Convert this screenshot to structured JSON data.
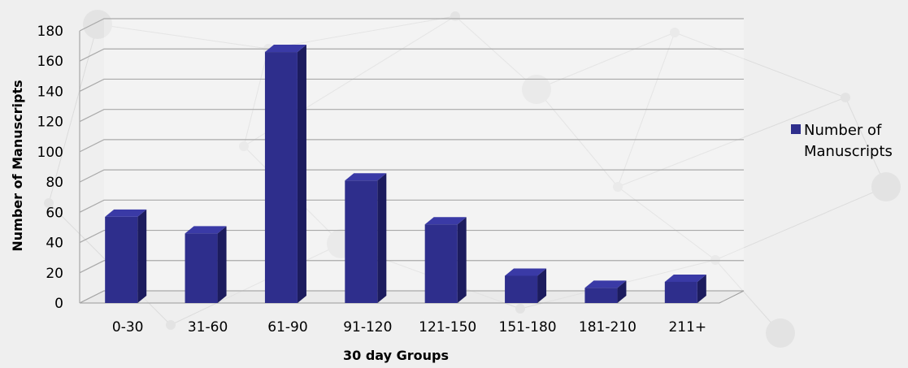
{
  "chart_data": {
    "type": "bar",
    "style": "3d-column",
    "categories": [
      "0-30",
      "31-60",
      "61-90",
      "91-120",
      "121-150",
      "151-180",
      "181-210",
      "211+"
    ],
    "series": [
      {
        "name": "Number of Manuscripts",
        "color": "#2e2e8c",
        "values": [
          57,
          46,
          166,
          81,
          52,
          18,
          10,
          14
        ]
      }
    ],
    "xlabel": "30 day Groups",
    "ylabel": "Number of Manuscripts",
    "ylim": [
      0,
      180
    ],
    "yticks": [
      0,
      20,
      40,
      60,
      80,
      100,
      120,
      140,
      160,
      180
    ],
    "grid": true,
    "legend": {
      "position": "right",
      "label_lines": [
        "Number of",
        "Manuscripts"
      ]
    }
  }
}
